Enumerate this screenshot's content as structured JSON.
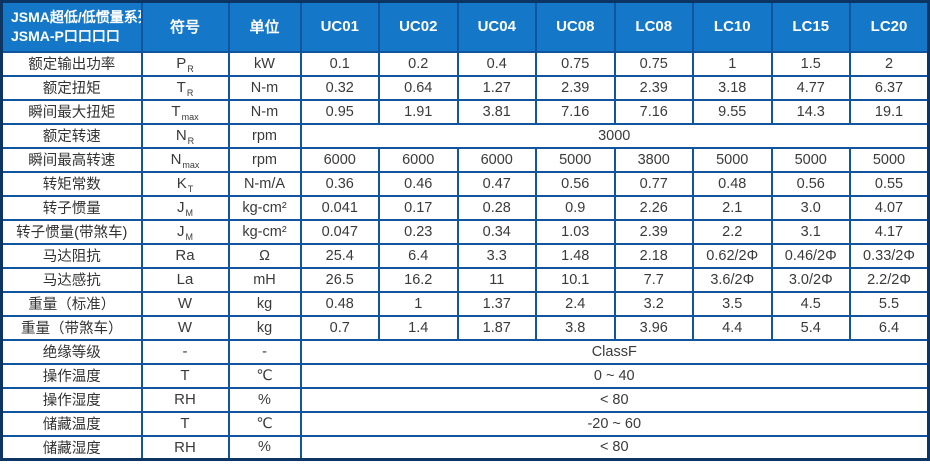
{
  "colors": {
    "header_bg": "#1477C8",
    "outer_border": "#0D3563",
    "grid_line": "#11559E",
    "header_text": "#FFFFFF",
    "body_text": "#3A3A3A"
  },
  "table": {
    "title_line1": "JSMA超低/低惯量系列",
    "title_line2": "JSMA-P口口口口",
    "symbol_header": "符号",
    "unit_header": "单位",
    "models": [
      "UC01",
      "UC02",
      "UC04",
      "UC08",
      "LC08",
      "LC10",
      "LC15",
      "LC20"
    ],
    "rows": [
      {
        "label": "额定输出功率",
        "symbol": "P",
        "symbol_sub": "R",
        "unit": "kW",
        "values": [
          "0.1",
          "0.2",
          "0.4",
          "0.75",
          "0.75",
          "1",
          "1.5",
          "2"
        ]
      },
      {
        "label": "额定扭矩",
        "symbol": "T",
        "symbol_sub": "R",
        "unit": "N-m",
        "values": [
          "0.32",
          "0.64",
          "1.27",
          "2.39",
          "2.39",
          "3.18",
          "4.77",
          "6.37"
        ]
      },
      {
        "label": "瞬间最大扭矩",
        "symbol": "T",
        "symbol_sub": "max",
        "unit": "N-m",
        "values": [
          "0.95",
          "1.91",
          "3.81",
          "7.16",
          "7.16",
          "9.55",
          "14.3",
          "19.1"
        ]
      },
      {
        "label": "额定转速",
        "symbol": "N",
        "symbol_sub": "R",
        "unit": "rpm",
        "merged": "3000"
      },
      {
        "label": "瞬间最高转速",
        "symbol": "N",
        "symbol_sub": "max",
        "unit": "rpm",
        "values": [
          "6000",
          "6000",
          "6000",
          "5000",
          "3800",
          "5000",
          "5000",
          "5000"
        ]
      },
      {
        "label": "转矩常数",
        "symbol": "K",
        "symbol_sub": "T",
        "unit": "N-m/A",
        "values": [
          "0.36",
          "0.46",
          "0.47",
          "0.56",
          "0.77",
          "0.48",
          "0.56",
          "0.55"
        ]
      },
      {
        "label": "转子惯量",
        "symbol": "J",
        "symbol_sub": "M",
        "unit": "kg-cm²",
        "values": [
          "0.041",
          "0.17",
          "0.28",
          "0.9",
          "2.26",
          "2.1",
          "3.0",
          "4.07"
        ]
      },
      {
        "label": "转子惯量(带煞车)",
        "symbol": "J",
        "symbol_sub": "M",
        "unit": "kg-cm²",
        "values": [
          "0.047",
          "0.23",
          "0.34",
          "1.03",
          "2.39",
          "2.2",
          "3.1",
          "4.17"
        ]
      },
      {
        "label": "马达阻抗",
        "symbol": "Ra",
        "unit": "Ω",
        "values": [
          "25.4",
          "6.4",
          "3.3",
          "1.48",
          "2.18",
          "0.62/2Φ",
          "0.46/2Φ",
          "0.33/2Φ"
        ]
      },
      {
        "label": "马达感抗",
        "symbol": "La",
        "unit": "mH",
        "values": [
          "26.5",
          "16.2",
          "11",
          "10.1",
          "7.7",
          "3.6/2Φ",
          "3.0/2Φ",
          "2.2/2Φ"
        ]
      },
      {
        "label": "重量（标准）",
        "symbol": "W",
        "unit": "kg",
        "values": [
          "0.48",
          "1",
          "1.37",
          "2.4",
          "3.2",
          "3.5",
          "4.5",
          "5.5"
        ]
      },
      {
        "label": "重量（带煞车）",
        "symbol": "W",
        "unit": "kg",
        "values": [
          "0.7",
          "1.4",
          "1.87",
          "3.8",
          "3.96",
          "4.4",
          "5.4",
          "6.4"
        ]
      },
      {
        "label": "绝缘等级",
        "symbol": "-",
        "unit": "-",
        "merged": "ClassF"
      },
      {
        "label": "操作温度",
        "symbol": "T",
        "unit": "℃",
        "merged": "0 ~ 40"
      },
      {
        "label": "操作湿度",
        "symbol": "RH",
        "unit": "%",
        "merged": "< 80"
      },
      {
        "label": "储藏温度",
        "symbol": "T",
        "unit": "℃",
        "merged": "-20 ~ 60"
      },
      {
        "label": "储藏湿度",
        "symbol": "RH",
        "unit": "%",
        "merged": "< 80"
      }
    ]
  }
}
